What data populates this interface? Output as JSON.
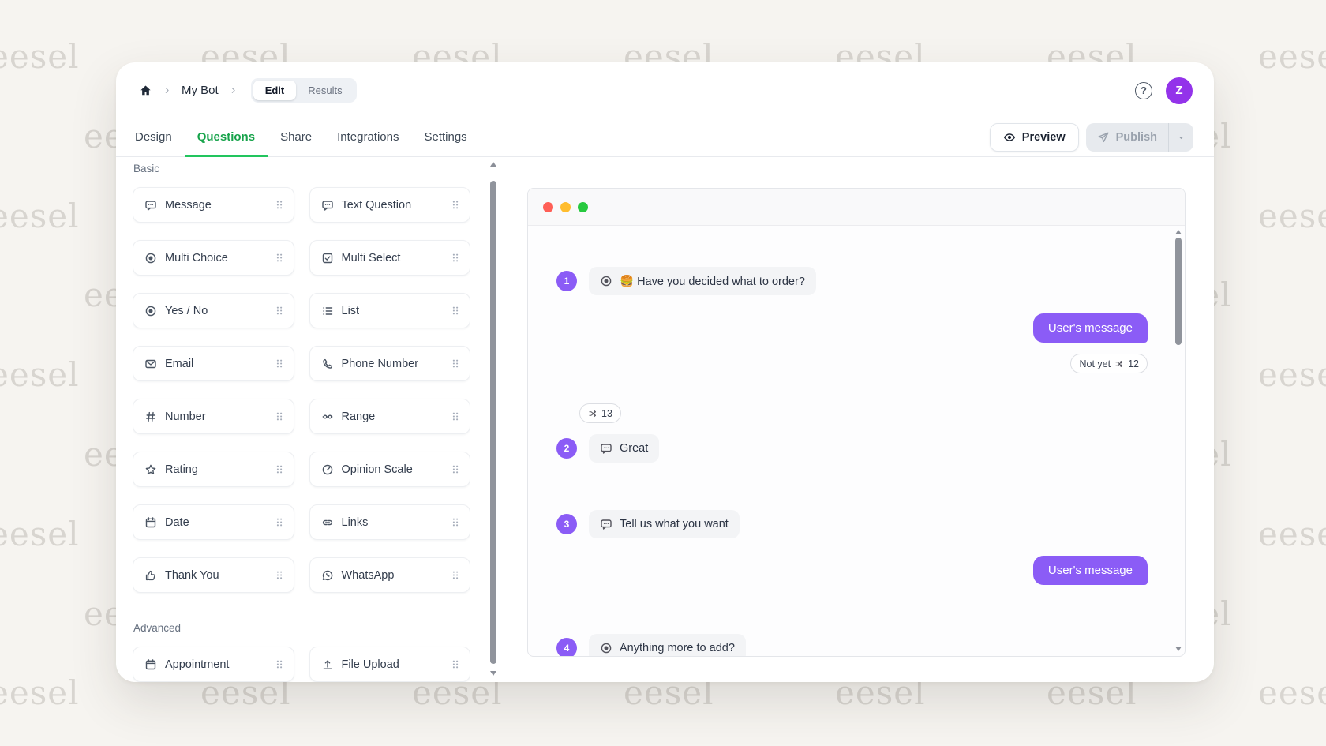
{
  "watermark": {
    "text": "eesel"
  },
  "topbar": {
    "breadcrumb": {
      "title": "My Bot"
    },
    "mode_toggle": {
      "active": "Edit",
      "options": [
        {
          "label": "Edit"
        },
        {
          "label": "Results"
        }
      ]
    },
    "avatar": {
      "letter": "Z",
      "color": "#9333ea"
    }
  },
  "tabbar": {
    "tabs": [
      {
        "label": "Design",
        "active": false
      },
      {
        "label": "Questions",
        "active": true
      },
      {
        "label": "Share",
        "active": false
      },
      {
        "label": "Integrations",
        "active": false
      },
      {
        "label": "Settings",
        "active": false
      }
    ],
    "preview_button": {
      "label": "Preview"
    },
    "publish_button": {
      "label": "Publish",
      "disabled": true
    }
  },
  "question_library": {
    "sections": [
      {
        "label": "Basic",
        "items": [
          {
            "label": "Message",
            "icon": "chat-bubble-icon"
          },
          {
            "label": "Text Question",
            "icon": "chat-bubble-icon"
          },
          {
            "label": "Multi Choice",
            "icon": "radio-icon"
          },
          {
            "label": "Multi Select",
            "icon": "checkbox-icon"
          },
          {
            "label": "Yes / No",
            "icon": "radio-icon"
          },
          {
            "label": "List",
            "icon": "list-icon"
          },
          {
            "label": "Email",
            "icon": "envelope-icon"
          },
          {
            "label": "Phone Number",
            "icon": "phone-icon"
          },
          {
            "label": "Number",
            "icon": "hash-icon"
          },
          {
            "label": "Range",
            "icon": "slider-icon"
          },
          {
            "label": "Rating",
            "icon": "star-icon"
          },
          {
            "label": "Opinion Scale",
            "icon": "gauge-icon"
          },
          {
            "label": "Date",
            "icon": "calendar-icon"
          },
          {
            "label": "Links",
            "icon": "link-icon"
          },
          {
            "label": "Thank You",
            "icon": "thumbs-up-icon"
          },
          {
            "label": "WhatsApp",
            "icon": "whatsapp-icon"
          }
        ]
      },
      {
        "label": "Advanced",
        "items": [
          {
            "label": "Appointment",
            "icon": "calendar-icon"
          },
          {
            "label": "File Upload",
            "icon": "upload-icon"
          }
        ]
      }
    ]
  },
  "chat_preview": {
    "window_controls": [
      "#ff5f56",
      "#ffbd2e",
      "#27c93f"
    ],
    "items": [
      {
        "kind": "step",
        "number": "1",
        "icon": "radio-icon",
        "text": "🍔 Have you decided what to order?"
      },
      {
        "kind": "bubble",
        "text": "User's message"
      },
      {
        "kind": "chip",
        "label": "Not yet",
        "icon": "shuffle-icon",
        "count": "12"
      },
      {
        "kind": "chip",
        "label": "",
        "icon": "shuffle-icon",
        "count": "13"
      },
      {
        "kind": "step",
        "number": "2",
        "icon": "chat-bubble-icon",
        "text": "Great"
      },
      {
        "kind": "step",
        "number": "3",
        "icon": "chat-bubble-icon",
        "text": "Tell us what you want"
      },
      {
        "kind": "bubble",
        "text": "User's message"
      },
      {
        "kind": "step",
        "number": "4",
        "icon": "radio-icon",
        "text": "Anything more to add?"
      }
    ]
  },
  "colors": {
    "accent_purple": "#8b5cf6",
    "brand_green": "#16a34a",
    "tab_underline_green": "#22c55e",
    "avatar_purple": "#9333ea",
    "watermark_gray": "#d8d5d0",
    "background": "#f6f4f0"
  }
}
